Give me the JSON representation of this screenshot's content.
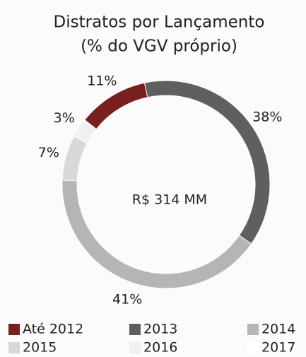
{
  "chart_data": {
    "type": "donut",
    "title": "Distratos por Lançamento",
    "subtitle": "(% do VGV próprio)",
    "center_label": "R$ 314 MM",
    "categories": [
      "Até 2012",
      "2013",
      "2014",
      "2015",
      "2016",
      "2017"
    ],
    "values": [
      11,
      38,
      41,
      7,
      3,
      0
    ],
    "value_labels": [
      "11%",
      "38%",
      "41%",
      "7%",
      "3%",
      null
    ],
    "colors": [
      "#7a1f1f",
      "#5f5f5f",
      "#b5b5b5",
      "#d8d8d8",
      "#f0f0f0",
      "#ffffff"
    ]
  }
}
